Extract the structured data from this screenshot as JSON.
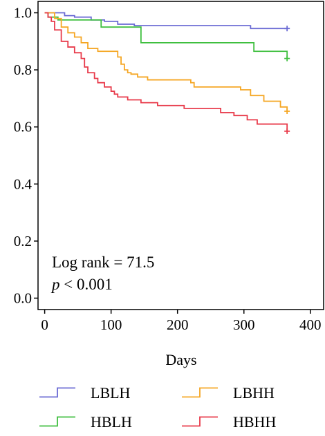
{
  "chart_data": {
    "type": "line",
    "subtype": "kaplan-meier-step",
    "xlabel": "Days",
    "ylabel": "",
    "xlim": [
      -10,
      420
    ],
    "ylim": [
      -0.04,
      1.04
    ],
    "xticks": [
      0,
      100,
      200,
      300,
      400
    ],
    "yticks": [
      0.0,
      0.2,
      0.4,
      0.6,
      0.8,
      1.0
    ],
    "ytick_labels": [
      "0.0",
      "0.2",
      "0.4",
      "0.6",
      "0.8",
      "1.0"
    ],
    "xtick_labels": [
      "0",
      "100",
      "200",
      "300",
      "400"
    ],
    "grid": false,
    "legend_position": "bottom",
    "annotations": {
      "log_rank": "Log rank = 71.5",
      "p_symbol": "p",
      "p_value": " < 0.001"
    },
    "series": [
      {
        "name": "LBLH",
        "color": "#6a6ad4",
        "x": [
          0,
          30,
          45,
          70,
          90,
          110,
          135,
          310,
          365
        ],
        "y": [
          1.0,
          0.99,
          0.985,
          0.975,
          0.97,
          0.96,
          0.955,
          0.945,
          0.945
        ],
        "censor": [
          [
            365,
            0.945
          ]
        ]
      },
      {
        "name": "HBLH",
        "color": "#3fbf3f",
        "x": [
          0,
          5,
          20,
          85,
          145,
          315,
          365
        ],
        "y": [
          1.0,
          0.985,
          0.975,
          0.95,
          0.895,
          0.865,
          0.84
        ],
        "censor": [
          [
            365,
            0.84
          ]
        ]
      },
      {
        "name": "LBHH",
        "color": "#f5a623",
        "x": [
          0,
          15,
          25,
          35,
          45,
          55,
          65,
          80,
          110,
          115,
          120,
          125,
          130,
          140,
          155,
          220,
          225,
          295,
          310,
          330,
          355,
          365
        ],
        "y": [
          1.0,
          0.98,
          0.95,
          0.93,
          0.915,
          0.895,
          0.875,
          0.865,
          0.845,
          0.82,
          0.8,
          0.79,
          0.785,
          0.775,
          0.765,
          0.755,
          0.74,
          0.73,
          0.71,
          0.69,
          0.67,
          0.655
        ],
        "censor": [
          [
            365,
            0.655
          ]
        ]
      },
      {
        "name": "HBHH",
        "color": "#e83a4a",
        "x": [
          0,
          5,
          10,
          15,
          25,
          35,
          45,
          55,
          60,
          65,
          75,
          80,
          90,
          100,
          105,
          110,
          125,
          145,
          170,
          210,
          265,
          285,
          305,
          320,
          365
        ],
        "y": [
          1.0,
          0.985,
          0.97,
          0.94,
          0.9,
          0.88,
          0.86,
          0.84,
          0.81,
          0.79,
          0.77,
          0.755,
          0.74,
          0.725,
          0.715,
          0.705,
          0.695,
          0.685,
          0.675,
          0.665,
          0.65,
          0.64,
          0.625,
          0.61,
          0.585
        ],
        "censor": [
          [
            365,
            0.585
          ]
        ]
      }
    ]
  }
}
